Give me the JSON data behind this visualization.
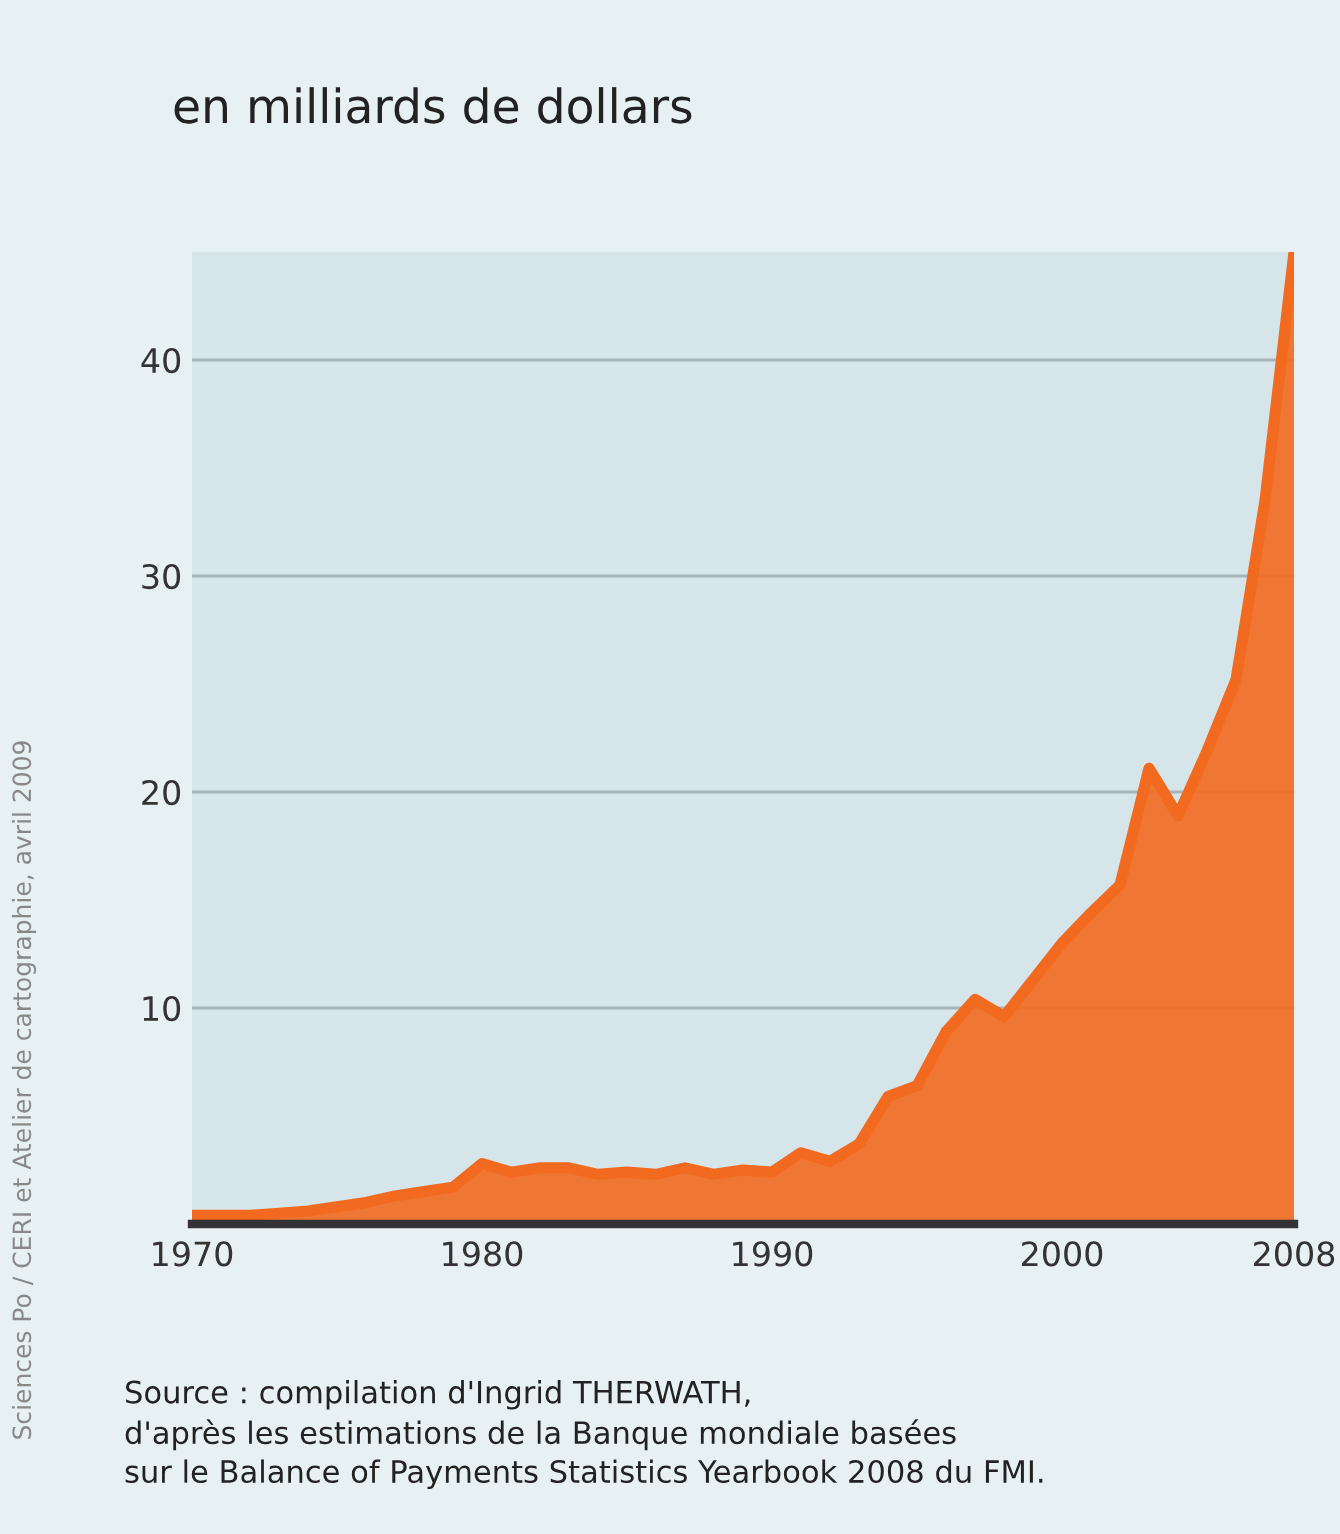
{
  "chart_data": {
    "type": "area",
    "title": "en milliards de dollars",
    "x": [
      1970,
      1971,
      1972,
      1973,
      1974,
      1975,
      1976,
      1977,
      1978,
      1979,
      1980,
      1981,
      1982,
      1983,
      1984,
      1985,
      1986,
      1987,
      1988,
      1989,
      1990,
      1991,
      1992,
      1993,
      1994,
      1995,
      1996,
      1997,
      1998,
      1999,
      2000,
      2001,
      2002,
      2003,
      2004,
      2005,
      2006,
      2007,
      2008
    ],
    "series": [
      {
        "color": "#f26a1f",
        "values": [
          0.4,
          0.4,
          0.4,
          0.5,
          0.6,
          0.8,
          1.0,
          1.3,
          1.5,
          1.7,
          2.8,
          2.4,
          2.6,
          2.6,
          2.3,
          2.4,
          2.3,
          2.6,
          2.3,
          2.5,
          2.4,
          3.3,
          2.9,
          3.7,
          5.9,
          6.4,
          8.9,
          10.4,
          9.6,
          11.3,
          13.0,
          14.4,
          15.7,
          21.1,
          18.9,
          21.9,
          25.2,
          33.5,
          45.0
        ]
      }
    ],
    "xlim": [
      1970,
      2008
    ],
    "xticks": [
      1970,
      1980,
      1990,
      2000,
      2008
    ],
    "ylim": [
      0,
      45
    ],
    "yticks": [
      10,
      20,
      30,
      40
    ],
    "grid": "y",
    "annotations": [
      "Source : compilation d'Ingrid THERWATH,\nd'après les estimations de la Banque mondiale basées\nsur le Balance of Payments Statistics Yearbook 2008 du FMI.",
      "Sciences Po / CERI et Atelier de cartographie, avril 2009"
    ]
  }
}
